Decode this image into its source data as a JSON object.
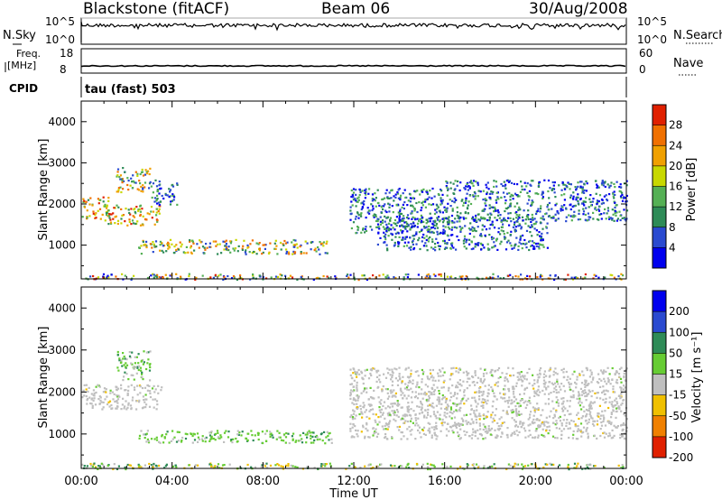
{
  "header": {
    "title": "Blackstone (fitACF)",
    "beam": "Beam 06",
    "date": "30/Aug/2008"
  },
  "panels": {
    "nsky": {
      "label": "N.Sky",
      "right_label": "N.Search",
      "tick_top": "10^5",
      "tick_bottom": "10^0",
      "right_tick_top": "10^5",
      "right_tick_bottom": "10^0"
    },
    "freq": {
      "label_line1": "Freq.",
      "label_line2": "[MHz]",
      "right_label": "Nave",
      "ticks_left": [
        "18",
        "8"
      ],
      "ticks_right": [
        "60",
        "0"
      ]
    },
    "cpid": {
      "label": "CPID",
      "value": "tau (fast) 503"
    }
  },
  "chart_data": [
    {
      "type": "heatmap",
      "quantity": "power",
      "ylabel": "Slant Range [km]",
      "ylim": [
        180,
        4500
      ],
      "yticks": [
        "1000",
        "2000",
        "3000",
        "4000"
      ],
      "colorbar_label": "Power [dB]",
      "colorbar_ticks": [
        "4",
        "8",
        "12",
        "16",
        "20",
        "24",
        "28"
      ],
      "colorbar_range": [
        0,
        32
      ],
      "colors": [
        "#0000ee",
        "#2a4ad0",
        "#2e8b57",
        "#55b055",
        "#c8d800",
        "#f0a000",
        "#f07000",
        "#e02000"
      ],
      "scatter_regions": [
        {
          "t": [
            0.0,
            1.2
          ],
          "r": [
            1650,
            2200
          ],
          "level": "high"
        },
        {
          "t": [
            1.0,
            3.5
          ],
          "r": [
            1500,
            2000
          ],
          "level": "high"
        },
        {
          "t": [
            1.5,
            3.0
          ],
          "r": [
            2300,
            2900
          ],
          "level": "medium"
        },
        {
          "t": [
            3.0,
            4.2
          ],
          "r": [
            2000,
            2600
          ],
          "level": "low"
        },
        {
          "t": [
            2.5,
            10.8
          ],
          "r": [
            800,
            1150
          ],
          "level": "medium"
        },
        {
          "t": [
            11.8,
            16.0
          ],
          "r": [
            1300,
            2400
          ],
          "level": "low"
        },
        {
          "t": [
            13.0,
            20.5
          ],
          "r": [
            900,
            1700
          ],
          "level": "low"
        },
        {
          "t": [
            16.0,
            24.0
          ],
          "r": [
            1600,
            2600
          ],
          "level": "low"
        },
        {
          "t": [
            0.0,
            24.0
          ],
          "r": [
            180,
            320
          ],
          "level": "mixed"
        }
      ]
    },
    {
      "type": "heatmap",
      "quantity": "velocity",
      "ylabel": "Slant Range [km]",
      "xlabel": "Time UT",
      "xticks": [
        "00:00",
        "04:00",
        "08:00",
        "12:00",
        "16:00",
        "20:00",
        "00:00"
      ],
      "xlim_hours": [
        0,
        24
      ],
      "ylim": [
        180,
        4500
      ],
      "yticks": [
        "1000",
        "2000",
        "3000",
        "4000"
      ],
      "colorbar_label": "Velocity [m s⁻¹]",
      "colorbar_ticks": [
        "200",
        "100",
        "50",
        "15",
        "-15",
        "-50",
        "-100",
        "-200"
      ],
      "colors": [
        "#0000ee",
        "#2a4ad0",
        "#2e8b57",
        "#66cc33",
        "#bfbfbf",
        "#f0c000",
        "#f08000",
        "#e02000"
      ],
      "scatter_regions": [
        {
          "t": [
            0.0,
            3.5
          ],
          "r": [
            1600,
            2200
          ],
          "level": "ground"
        },
        {
          "t": [
            1.5,
            3.0
          ],
          "r": [
            2300,
            3000
          ],
          "level": "positive"
        },
        {
          "t": [
            2.5,
            11.0
          ],
          "r": [
            800,
            1100
          ],
          "level": "positive"
        },
        {
          "t": [
            11.8,
            24.0
          ],
          "r": [
            900,
            2600
          ],
          "level": "ground"
        },
        {
          "t": [
            0.0,
            24.0
          ],
          "r": [
            180,
            320
          ],
          "level": "mixed"
        }
      ]
    }
  ]
}
